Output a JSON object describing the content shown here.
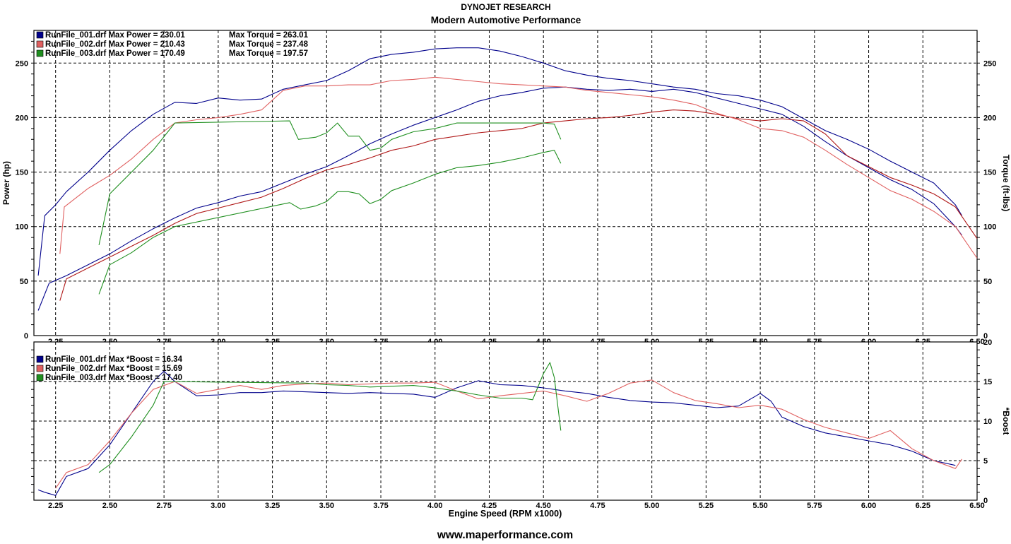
{
  "header": {
    "title": "DYNOJET RESEARCH",
    "subtitle": "Modern Automotive Performance"
  },
  "footer": {
    "url": "www.maperformance.com"
  },
  "colors": {
    "run1": "#00008b",
    "run2": "#e06060",
    "run3": "#1f8f1f",
    "grid": "#000000"
  },
  "chart_data": [
    {
      "type": "line",
      "xlabel": "Engine Speed (RPM x1000)",
      "ylabel": "Power (hp)",
      "y2label": "Torque (ft-lbs)",
      "xlim": [
        2.15,
        6.5
      ],
      "ylim": [
        0,
        280
      ],
      "y2lim": [
        0,
        280
      ],
      "grid": true,
      "legend_position": "top-left",
      "x_ticks": [
        "2.25",
        "2.50",
        "2.75",
        "3.00",
        "3.25",
        "3.50",
        "3.75",
        "4.00",
        "4.25",
        "4.50",
        "4.75",
        "5.00",
        "5.25",
        "5.50",
        "5.75",
        "6.00",
        "6.25",
        "6.50"
      ],
      "y_ticks": [
        "0",
        "50",
        "100",
        "150",
        "200",
        "250"
      ],
      "y2_ticks": [
        "0",
        "50",
        "100",
        "150",
        "200",
        "250"
      ],
      "legend": [
        {
          "file": "RunFile_001.drf",
          "text": "Max Power = 230.01",
          "text2": "Max Torque = 263.01",
          "color": "#00008b"
        },
        {
          "file": "RunFile_002.drf",
          "text": "Max Power = 210.43",
          "text2": "Max Torque = 237.48",
          "color": "#e06060"
        },
        {
          "file": "RunFile_003.drf",
          "text": "Max Power = 170.49",
          "text2": "Max Torque = 197.57",
          "color": "#1f8f1f"
        }
      ],
      "series": [
        {
          "name": "RunFile_001.drf Power",
          "color": "#00008b",
          "x": [
            2.17,
            2.22,
            2.3,
            2.4,
            2.5,
            2.6,
            2.7,
            2.8,
            2.9,
            3.0,
            3.1,
            3.2,
            3.3,
            3.4,
            3.5,
            3.6,
            3.7,
            3.8,
            3.9,
            4.0,
            4.1,
            4.2,
            4.3,
            4.4,
            4.5,
            4.6,
            4.7,
            4.8,
            4.9,
            5.0,
            5.1,
            5.2,
            5.3,
            5.4,
            5.5,
            5.6,
            5.7,
            5.8,
            5.9,
            6.0,
            6.1,
            6.2,
            6.3,
            6.4,
            6.43
          ],
          "y": [
            23,
            48,
            55,
            65,
            75,
            87,
            98,
            108,
            117,
            122,
            128,
            132,
            140,
            148,
            155,
            165,
            176,
            185,
            193,
            200,
            207,
            215,
            220,
            223,
            227,
            228,
            226,
            225,
            226,
            224,
            226,
            223,
            218,
            213,
            208,
            203,
            192,
            178,
            165,
            154,
            143,
            134,
            121,
            100,
            92
          ]
        },
        {
          "name": "RunFile_001.drf Torque",
          "color": "#00008b",
          "x": [
            2.17,
            2.2,
            2.25,
            2.3,
            2.4,
            2.5,
            2.6,
            2.7,
            2.8,
            2.9,
            3.0,
            3.1,
            3.2,
            3.3,
            3.4,
            3.5,
            3.6,
            3.7,
            3.8,
            3.9,
            4.0,
            4.1,
            4.2,
            4.3,
            4.4,
            4.5,
            4.6,
            4.7,
            4.8,
            4.9,
            5.0,
            5.1,
            5.2,
            5.3,
            5.4,
            5.5,
            5.6,
            5.7,
            5.8,
            5.9,
            6.0,
            6.1,
            6.2,
            6.3,
            6.4,
            6.43
          ],
          "y": [
            55,
            110,
            120,
            132,
            150,
            170,
            188,
            203,
            214,
            213,
            218,
            216,
            217,
            226,
            230,
            234,
            243,
            254,
            258,
            260,
            263,
            264,
            264,
            261,
            256,
            250,
            243,
            239,
            236,
            234,
            231,
            228,
            226,
            222,
            220,
            216,
            210,
            199,
            188,
            180,
            171,
            160,
            150,
            140,
            120,
            110
          ]
        },
        {
          "name": "RunFile_002.drf Power",
          "color": "#b01818",
          "x": [
            2.27,
            2.3,
            2.4,
            2.5,
            2.6,
            2.7,
            2.8,
            2.9,
            3.0,
            3.1,
            3.2,
            3.3,
            3.4,
            3.5,
            3.6,
            3.7,
            3.8,
            3.9,
            4.0,
            4.1,
            4.2,
            4.3,
            4.4,
            4.5,
            4.6,
            4.7,
            4.8,
            4.9,
            5.0,
            5.1,
            5.2,
            5.3,
            5.4,
            5.5,
            5.6,
            5.7,
            5.8,
            5.9,
            6.0,
            6.1,
            6.2,
            6.3,
            6.4,
            6.5
          ],
          "y": [
            32,
            52,
            62,
            72,
            82,
            92,
            103,
            112,
            117,
            122,
            127,
            135,
            144,
            152,
            157,
            163,
            170,
            174,
            180,
            183,
            186,
            188,
            190,
            195,
            197,
            199,
            200,
            202,
            205,
            207,
            206,
            203,
            199,
            197,
            199,
            197,
            185,
            165,
            155,
            145,
            138,
            130,
            118,
            89
          ]
        },
        {
          "name": "RunFile_002.drf Torque",
          "color": "#e06060",
          "x": [
            2.27,
            2.29,
            2.4,
            2.5,
            2.6,
            2.7,
            2.8,
            2.9,
            3.0,
            3.1,
            3.2,
            3.3,
            3.4,
            3.5,
            3.6,
            3.7,
            3.8,
            3.9,
            4.0,
            4.1,
            4.2,
            4.3,
            4.4,
            4.5,
            4.6,
            4.7,
            4.8,
            4.9,
            5.0,
            5.1,
            5.2,
            5.3,
            5.4,
            5.5,
            5.6,
            5.7,
            5.8,
            5.9,
            6.0,
            6.1,
            6.2,
            6.3,
            6.4,
            6.5
          ],
          "y": [
            75,
            118,
            135,
            147,
            162,
            180,
            195,
            198,
            200,
            203,
            207,
            225,
            229,
            229,
            230,
            230,
            234,
            235,
            237,
            235,
            233,
            231,
            230,
            229,
            228,
            225,
            223,
            221,
            219,
            216,
            212,
            204,
            198,
            190,
            188,
            182,
            170,
            157,
            145,
            133,
            125,
            114,
            100,
            71
          ]
        },
        {
          "name": "RunFile_003.drf Power",
          "color": "#1f8f1f",
          "x": [
            2.45,
            2.5,
            2.6,
            2.7,
            2.8,
            3.33,
            3.38,
            3.45,
            3.5,
            3.55,
            3.6,
            3.65,
            3.7,
            3.75,
            3.8,
            3.9,
            4.0,
            4.1,
            4.2,
            4.3,
            4.4,
            4.5,
            4.55,
            4.58
          ],
          "y": [
            38,
            65,
            76,
            90,
            100,
            122,
            116,
            119,
            123,
            132,
            132,
            130,
            121,
            125,
            133,
            140,
            148,
            154,
            156,
            159,
            163,
            168,
            170,
            158
          ]
        },
        {
          "name": "RunFile_003.drf Torque",
          "color": "#1f8f1f",
          "x": [
            2.45,
            2.5,
            2.6,
            2.7,
            2.8,
            3.33,
            3.37,
            3.45,
            3.5,
            3.55,
            3.6,
            3.65,
            3.7,
            3.75,
            3.8,
            3.9,
            4.0,
            4.1,
            4.2,
            4.3,
            4.4,
            4.5,
            4.55,
            4.58
          ],
          "y": [
            83,
            130,
            150,
            170,
            195,
            197,
            180,
            182,
            186,
            195,
            183,
            183,
            170,
            172,
            180,
            187,
            190,
            195,
            195,
            195,
            195,
            195,
            194,
            180
          ]
        }
      ]
    },
    {
      "type": "line",
      "xlabel": "Engine Speed (RPM x1000)",
      "y2label": "*Boost",
      "xlim": [
        2.15,
        6.5
      ],
      "ylim": [
        0,
        20
      ],
      "grid": true,
      "legend_position": "top-left",
      "x_ticks": [
        "2.25",
        "2.50",
        "2.75",
        "3.00",
        "3.25",
        "3.50",
        "3.75",
        "4.00",
        "4.25",
        "4.50",
        "4.75",
        "5.00",
        "5.25",
        "5.50",
        "5.75",
        "6.00",
        "6.25",
        "6.50"
      ],
      "y2_ticks": [
        "0",
        "5",
        "10",
        "15",
        "20"
      ],
      "legend": [
        {
          "file": "RunFile_001.drf",
          "text": "Max *Boost = 16.34",
          "color": "#00008b"
        },
        {
          "file": "RunFile_002.drf",
          "text": "Max *Boost = 15.69",
          "color": "#e06060"
        },
        {
          "file": "RunFile_003.drf",
          "text": "Max *Boost = 17.40",
          "color": "#1f8f1f"
        }
      ],
      "series": [
        {
          "name": "RunFile_001.drf *Boost",
          "color": "#00008b",
          "x": [
            2.17,
            2.2,
            2.25,
            2.3,
            2.4,
            2.5,
            2.6,
            2.7,
            2.75,
            2.8,
            2.9,
            3.0,
            3.1,
            3.2,
            3.3,
            3.4,
            3.5,
            3.6,
            3.7,
            3.8,
            3.9,
            4.0,
            4.1,
            4.2,
            4.3,
            4.4,
            4.5,
            4.6,
            4.7,
            4.8,
            4.9,
            5.0,
            5.1,
            5.2,
            5.3,
            5.4,
            5.5,
            5.55,
            5.6,
            5.7,
            5.8,
            5.9,
            6.0,
            6.1,
            6.2,
            6.3,
            6.4
          ],
          "y": [
            1.3,
            1.0,
            0.6,
            3.0,
            4.0,
            7.0,
            11.0,
            15.0,
            16.3,
            15.0,
            13.2,
            13.3,
            13.6,
            13.6,
            13.8,
            13.7,
            13.6,
            13.5,
            13.6,
            13.5,
            13.4,
            13.0,
            14.2,
            15.1,
            14.6,
            14.5,
            14.2,
            13.8,
            13.5,
            13.0,
            12.6,
            12.4,
            12.3,
            12.0,
            11.7,
            11.9,
            13.5,
            12.5,
            10.5,
            9.3,
            8.5,
            8.0,
            7.5,
            7.0,
            6.2,
            5.0,
            4.4
          ]
        },
        {
          "name": "RunFile_002.drf *Boost",
          "color": "#e06060",
          "x": [
            2.25,
            2.3,
            2.4,
            2.5,
            2.6,
            2.7,
            2.8,
            2.9,
            3.0,
            3.1,
            3.2,
            3.3,
            3.4,
            3.5,
            3.6,
            3.7,
            3.8,
            3.9,
            4.0,
            4.1,
            4.2,
            4.3,
            4.4,
            4.5,
            4.6,
            4.7,
            4.8,
            4.9,
            5.0,
            5.1,
            5.2,
            5.3,
            5.4,
            5.5,
            5.6,
            5.7,
            5.8,
            5.9,
            6.0,
            6.1,
            6.2,
            6.3,
            6.4,
            6.43
          ],
          "y": [
            1.5,
            3.5,
            4.5,
            7.5,
            11.0,
            14.0,
            15.0,
            13.5,
            14.0,
            14.5,
            14.0,
            14.5,
            14.7,
            14.8,
            14.6,
            14.7,
            14.8,
            14.8,
            14.9,
            13.8,
            12.8,
            13.2,
            13.5,
            13.8,
            13.2,
            12.5,
            13.5,
            14.8,
            15.2,
            13.6,
            12.6,
            12.2,
            11.7,
            12.0,
            11.5,
            10.2,
            9.2,
            8.5,
            7.8,
            8.8,
            6.5,
            5.0,
            4.0,
            5.2
          ]
        },
        {
          "name": "RunFile_003.drf *Boost",
          "color": "#1f8f1f",
          "x": [
            2.45,
            2.5,
            2.6,
            2.7,
            2.75,
            3.4,
            3.5,
            3.6,
            3.7,
            3.8,
            3.9,
            4.0,
            4.1,
            4.2,
            4.3,
            4.4,
            4.45,
            4.5,
            4.53,
            4.55,
            4.58
          ],
          "y": [
            3.5,
            4.5,
            8.0,
            12.0,
            15.0,
            14.8,
            14.6,
            14.5,
            14.3,
            14.4,
            14.5,
            14.2,
            13.8,
            13.3,
            12.9,
            12.9,
            12.7,
            16.0,
            17.4,
            15.5,
            8.8
          ]
        }
      ]
    }
  ]
}
